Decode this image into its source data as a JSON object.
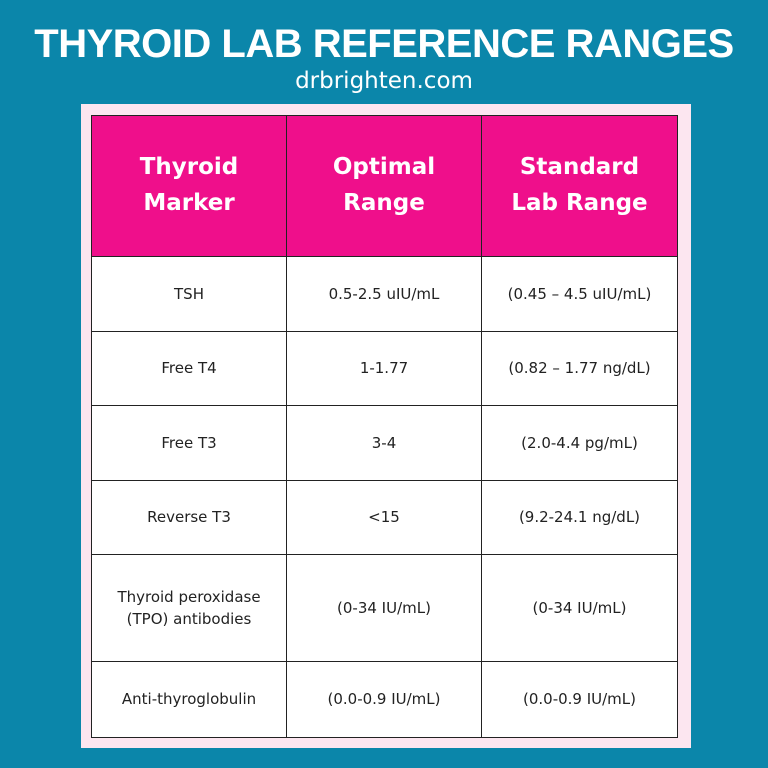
{
  "header": {
    "title": "THYROID LAB REFERENCE RANGES",
    "subtitle": "drbrighten.com"
  },
  "table": {
    "columns": [
      "Thyroid\nMarker",
      "Optimal\nRange",
      "Standard\nLab Range"
    ],
    "rows": [
      [
        "TSH",
        "0.5-2.5 uIU/mL",
        "(0.45 – 4.5 uIU/mL)"
      ],
      [
        "Free T4",
        "1-1.77",
        "(0.82 – 1.77 ng/dL)"
      ],
      [
        "Free T3",
        "3-4",
        "(2.0-4.4 pg/mL)"
      ],
      [
        "Reverse T3",
        "<15",
        "(9.2-24.1 ng/dL)"
      ],
      [
        "Thyroid peroxidase\n(TPO) antibodies",
        "(0-34 IU/mL)",
        "(0-34 IU/mL)"
      ],
      [
        "Anti-thyroglobulin",
        "(0.0-0.9 IU/mL)",
        "(0.0-0.9 IU/mL)"
      ]
    ]
  }
}
